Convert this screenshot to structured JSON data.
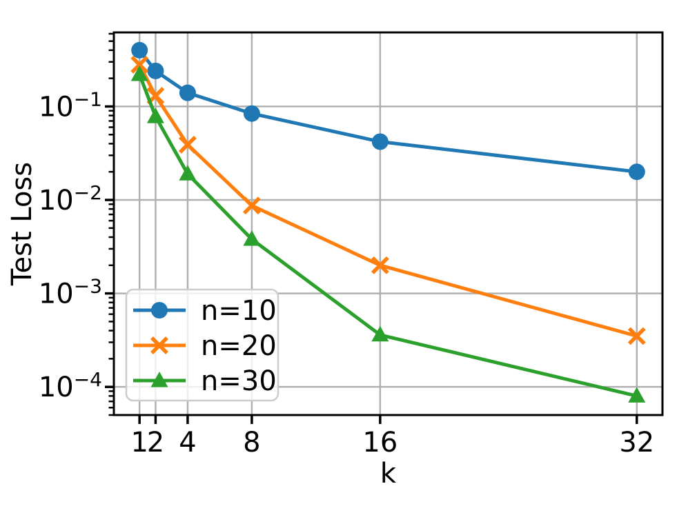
{
  "chart_data": {
    "type": "line",
    "title": "",
    "xlabel": "k",
    "ylabel": "Test Loss",
    "xscale": "linear",
    "yscale": "log",
    "xlim": [
      -0.6,
      33.6
    ],
    "ylim": [
      5e-05,
      0.62
    ],
    "grid": true,
    "grid_color": "#b0b0b0",
    "axis_color": "#000000",
    "text_color": "#000000",
    "background_color": "#ffffff",
    "legend_position": "lower-left",
    "x": [
      1,
      2,
      4,
      8,
      16,
      32
    ],
    "xticks": [
      {
        "value": 1,
        "label": "1"
      },
      {
        "value": 2,
        "label": "2"
      },
      {
        "value": 4,
        "label": "4"
      },
      {
        "value": 8,
        "label": "8"
      },
      {
        "value": 16,
        "label": "16"
      },
      {
        "value": 32,
        "label": "32"
      }
    ],
    "yticks": [
      {
        "value": 0.1,
        "base": "10",
        "sup": "−1"
      },
      {
        "value": 0.01,
        "base": "10",
        "sup": "−2"
      },
      {
        "value": 0.001,
        "base": "10",
        "sup": "−3"
      },
      {
        "value": 0.0001,
        "base": "10",
        "sup": "−4"
      }
    ],
    "series": [
      {
        "name": "n=10",
        "color": "#1f77b4",
        "marker": "circle",
        "values": [
          0.4,
          0.24,
          0.14,
          0.084,
          0.042,
          0.02
        ]
      },
      {
        "name": "n=20",
        "color": "#ff7f0e",
        "marker": "x",
        "values": [
          0.28,
          0.13,
          0.039,
          0.0087,
          0.002,
          0.00035
        ]
      },
      {
        "name": "n=30",
        "color": "#2ca02c",
        "marker": "triangle",
        "values": [
          0.22,
          0.078,
          0.019,
          0.0038,
          0.00036,
          8e-05
        ]
      }
    ],
    "legend_entries": [
      "n=10",
      "n=20",
      "n=30"
    ]
  }
}
